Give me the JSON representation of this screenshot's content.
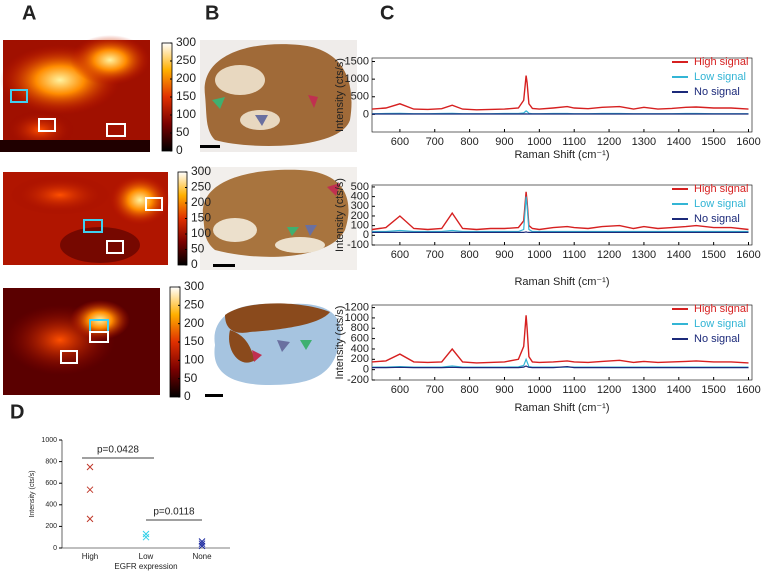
{
  "panel_labels": [
    "A",
    "B",
    "C",
    "D"
  ],
  "chart_data": [
    {
      "type": "colorbar",
      "ylim": [
        0,
        300
      ],
      "yticks": [
        0,
        50,
        100,
        150,
        200,
        250,
        300
      ],
      "colormap": [
        "#000000",
        "#7a0000",
        "#e03000",
        "#ffb000",
        "#ffffff"
      ]
    },
    {
      "type": "colorbar",
      "ylim": [
        0,
        300
      ],
      "yticks": [
        0,
        50,
        100,
        150,
        200,
        250,
        300
      ],
      "colormap": [
        "#000000",
        "#7a0000",
        "#e03000",
        "#ffb000",
        "#ffffff"
      ]
    },
    {
      "type": "colorbar",
      "ylim": [
        0,
        300
      ],
      "yticks": [
        0,
        50,
        100,
        150,
        200,
        250,
        300
      ],
      "colormap": [
        "#000000",
        "#7a0000",
        "#e03000",
        "#ffb000",
        "#ffffff"
      ]
    },
    {
      "type": "line",
      "ylabel": "Intensity (cts/s)",
      "xlabel": "Raman Shift (cm⁻¹)",
      "x": [
        520,
        560,
        600,
        640,
        680,
        720,
        750,
        780,
        820,
        860,
        900,
        940,
        955,
        962,
        965,
        970,
        980,
        1000,
        1040,
        1080,
        1100,
        1140,
        1180,
        1230,
        1270,
        1300,
        1340,
        1380,
        1420,
        1450,
        1500,
        1550,
        1600
      ],
      "xlim": [
        520,
        1610
      ],
      "xticks": [
        600,
        700,
        800,
        900,
        1000,
        1100,
        1200,
        1300,
        1400,
        1500,
        1600
      ],
      "ylim": [
        -500,
        1600
      ],
      "yticks": [
        0,
        500,
        1000,
        1500
      ],
      "series": [
        {
          "name": "High signal",
          "color": "#d62020",
          "values": [
            150,
            180,
            300,
            150,
            140,
            160,
            260,
            150,
            130,
            140,
            150,
            180,
            400,
            1100,
            900,
            300,
            170,
            150,
            180,
            220,
            180,
            160,
            200,
            220,
            150,
            200,
            150,
            170,
            200,
            210,
            180,
            180,
            150
          ]
        },
        {
          "name": "Low signal",
          "color": "#33b5d5",
          "values": [
            20,
            25,
            30,
            20,
            20,
            25,
            30,
            20,
            20,
            20,
            25,
            25,
            40,
            100,
            80,
            30,
            20,
            20,
            25,
            25,
            20,
            20,
            25,
            25,
            20,
            20,
            20,
            20,
            25,
            25,
            20,
            20,
            20
          ]
        },
        {
          "name": "No signal",
          "color": "#1c2a7a",
          "values": [
            10,
            10,
            10,
            10,
            10,
            10,
            10,
            10,
            10,
            10,
            10,
            10,
            10,
            15,
            12,
            10,
            10,
            10,
            10,
            10,
            10,
            10,
            10,
            10,
            10,
            10,
            10,
            10,
            10,
            10,
            10,
            10,
            10
          ]
        }
      ]
    },
    {
      "type": "line",
      "ylabel": "Intensity (cts/s)",
      "xlabel": "Raman Shift (cm⁻¹)",
      "x": [
        520,
        560,
        600,
        640,
        680,
        720,
        750,
        780,
        820,
        860,
        900,
        940,
        955,
        962,
        965,
        970,
        980,
        1000,
        1040,
        1080,
        1100,
        1140,
        1180,
        1230,
        1270,
        1300,
        1340,
        1380,
        1420,
        1450,
        1500,
        1550,
        1600
      ],
      "xlim": [
        520,
        1610
      ],
      "xticks": [
        600,
        700,
        800,
        900,
        1000,
        1100,
        1200,
        1300,
        1400,
        1500,
        1600
      ],
      "ylim": [
        -100,
        520
      ],
      "yticks": [
        -100,
        0,
        100,
        200,
        300,
        400,
        500
      ],
      "series": [
        {
          "name": "High signal",
          "color": "#d62020",
          "values": [
            60,
            80,
            200,
            70,
            60,
            70,
            230,
            70,
            60,
            70,
            70,
            80,
            150,
            450,
            350,
            100,
            70,
            60,
            80,
            90,
            80,
            70,
            90,
            100,
            70,
            90,
            70,
            80,
            90,
            100,
            80,
            80,
            60
          ]
        },
        {
          "name": "Low signal",
          "color": "#33b5d5",
          "values": [
            40,
            40,
            50,
            40,
            40,
            40,
            50,
            40,
            40,
            40,
            40,
            40,
            60,
            400,
            300,
            60,
            40,
            40,
            40,
            40,
            40,
            40,
            40,
            40,
            40,
            40,
            40,
            40,
            40,
            40,
            40,
            40,
            40
          ]
        },
        {
          "name": "No signal",
          "color": "#1c2a7a",
          "values": [
            30,
            30,
            30,
            30,
            30,
            30,
            30,
            30,
            30,
            30,
            30,
            30,
            30,
            35,
            32,
            30,
            30,
            30,
            30,
            30,
            30,
            30,
            30,
            30,
            30,
            30,
            30,
            30,
            30,
            30,
            30,
            30,
            30
          ]
        }
      ]
    },
    {
      "type": "line",
      "ylabel": "Intensity (cts/s)",
      "xlabel": "Raman Shift (cm⁻¹)",
      "x": [
        520,
        560,
        600,
        640,
        680,
        720,
        750,
        780,
        820,
        860,
        900,
        940,
        955,
        962,
        965,
        970,
        980,
        1000,
        1040,
        1080,
        1100,
        1140,
        1180,
        1230,
        1270,
        1300,
        1340,
        1380,
        1420,
        1450,
        1500,
        1550,
        1600
      ],
      "xlim": [
        520,
        1610
      ],
      "xticks": [
        600,
        700,
        800,
        900,
        1000,
        1100,
        1200,
        1300,
        1400,
        1500,
        1600
      ],
      "ylim": [
        -200,
        1250
      ],
      "yticks": [
        -200,
        0,
        200,
        400,
        600,
        800,
        1000,
        1200
      ],
      "series": [
        {
          "name": "High signal",
          "color": "#d62020",
          "values": [
            150,
            170,
            300,
            150,
            140,
            150,
            400,
            150,
            130,
            140,
            150,
            200,
            450,
            1050,
            800,
            250,
            150,
            140,
            150,
            170,
            150,
            140,
            160,
            180,
            140,
            160,
            140,
            150,
            160,
            170,
            150,
            150,
            130
          ]
        },
        {
          "name": "Low signal",
          "color": "#33b5d5",
          "values": [
            50,
            50,
            60,
            50,
            50,
            50,
            70,
            50,
            50,
            50,
            50,
            55,
            80,
            200,
            150,
            60,
            50,
            50,
            50,
            50,
            50,
            50,
            50,
            50,
            50,
            50,
            50,
            50,
            50,
            50,
            50,
            50,
            50
          ]
        },
        {
          "name": "No signal",
          "color": "#1c2a7a",
          "values": [
            40,
            40,
            45,
            40,
            40,
            40,
            45,
            40,
            40,
            40,
            40,
            40,
            50,
            70,
            60,
            45,
            40,
            40,
            40,
            60,
            40,
            40,
            40,
            40,
            40,
            40,
            40,
            40,
            40,
            40,
            40,
            40,
            40
          ]
        }
      ]
    },
    {
      "type": "scatter",
      "ylabel": "Intensity (cts/s)",
      "xlabel": "EGFR expression",
      "categories": [
        "High",
        "Low",
        "None"
      ],
      "ylim": [
        0,
        1000
      ],
      "yticks": [
        0,
        200,
        400,
        600,
        800,
        1000
      ],
      "groups": [
        {
          "color": "#c0392b",
          "values": [
            750,
            540,
            270
          ]
        },
        {
          "color": "#33d0e8",
          "values": [
            130,
            100
          ]
        },
        {
          "color": "#1c2aa0",
          "values": [
            60,
            40,
            20
          ]
        }
      ],
      "annotations": [
        "p=0.0428",
        "p=0.0118"
      ]
    }
  ]
}
